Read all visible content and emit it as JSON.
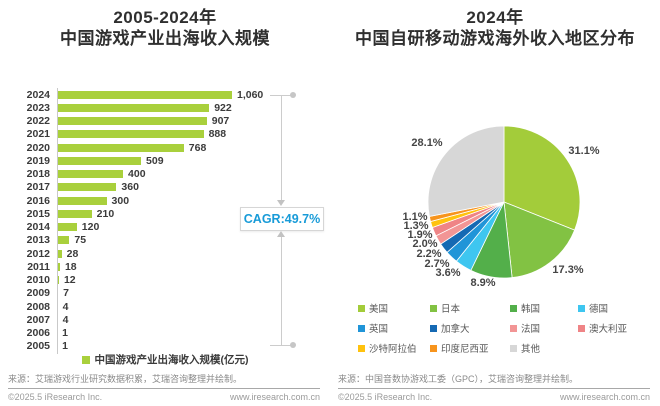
{
  "left_panel": {
    "title_line1": "2005-2024年",
    "title_line2": "中国游戏产业出海收入规模",
    "legend_label": "中国游戏产业出海收入规模(亿元)",
    "cagr_label": "CAGR:49.7%",
    "source": "来源：艾瑞游戏行业研究数据积累，艾瑞咨询整理并绘制。",
    "footer_left": "©2025.5 iResearch Inc.",
    "footer_right": "www.iresearch.com.cn"
  },
  "right_panel": {
    "title_line1": "2024年",
    "title_line2": "中国自研移动游戏海外收入地区分布",
    "source": "来源：中国音数协游戏工委（GPC），艾瑞咨询整理并绘制。",
    "footer_left": "©2025.5 iResearch Inc.",
    "footer_right": "www.iresearch.com.cn"
  },
  "chart_data": [
    {
      "type": "bar",
      "orientation": "horizontal",
      "title": "2005-2024年中国游戏产业出海收入规模",
      "unit": "亿元",
      "bar_color": "#A9D03C",
      "annotation": "CAGR:49.7%",
      "xlim": [
        0,
        1060
      ],
      "categories": [
        "2024",
        "2023",
        "2022",
        "2021",
        "2020",
        "2019",
        "2018",
        "2017",
        "2016",
        "2015",
        "2014",
        "2013",
        "2012",
        "2011",
        "2010",
        "2009",
        "2008",
        "2007",
        "2006",
        "2005"
      ],
      "values": [
        1060,
        922,
        907,
        888,
        768,
        509,
        400,
        360,
        300,
        210,
        120,
        75,
        28,
        18,
        12,
        7,
        4,
        4,
        1,
        1
      ],
      "value_labels": [
        "1,060",
        "922",
        "907",
        "888",
        "768",
        "509",
        "400",
        "360",
        "300",
        "210",
        "120",
        "75",
        "28",
        "18",
        "12",
        "7",
        "4",
        "4",
        "1",
        "1"
      ]
    },
    {
      "type": "pie",
      "title": "2024年中国自研移动游戏海外收入地区分布",
      "legend_position": "bottom",
      "slices": [
        {
          "label": "美国",
          "value": 31.1,
          "pct": "31.1%",
          "color": "#A3CC3A"
        },
        {
          "label": "日本",
          "value": 17.3,
          "pct": "17.3%",
          "color": "#82C243"
        },
        {
          "label": "韩国",
          "value": 8.9,
          "pct": "8.9%",
          "color": "#53AF4A"
        },
        {
          "label": "德国",
          "value": 3.6,
          "pct": "3.6%",
          "color": "#3EC6F0"
        },
        {
          "label": "英国",
          "value": 2.7,
          "pct": "2.7%",
          "color": "#2095D8"
        },
        {
          "label": "加拿大",
          "value": 2.2,
          "pct": "2.2%",
          "color": "#1569B3"
        },
        {
          "label": "法国",
          "value": 2.0,
          "pct": "2.0%",
          "color": "#F29595"
        },
        {
          "label": "澳大利亚",
          "value": 1.9,
          "pct": "1.9%",
          "color": "#EF8486"
        },
        {
          "label": "沙特阿拉伯",
          "value": 1.3,
          "pct": "1.3%",
          "color": "#FFC20E"
        },
        {
          "label": "印度尼西亚",
          "value": 1.1,
          "pct": "1.1%",
          "color": "#F7941D"
        },
        {
          "label": "其他",
          "value": 28.1,
          "pct": "28.1%",
          "color": "#D7D7D7"
        }
      ]
    }
  ]
}
